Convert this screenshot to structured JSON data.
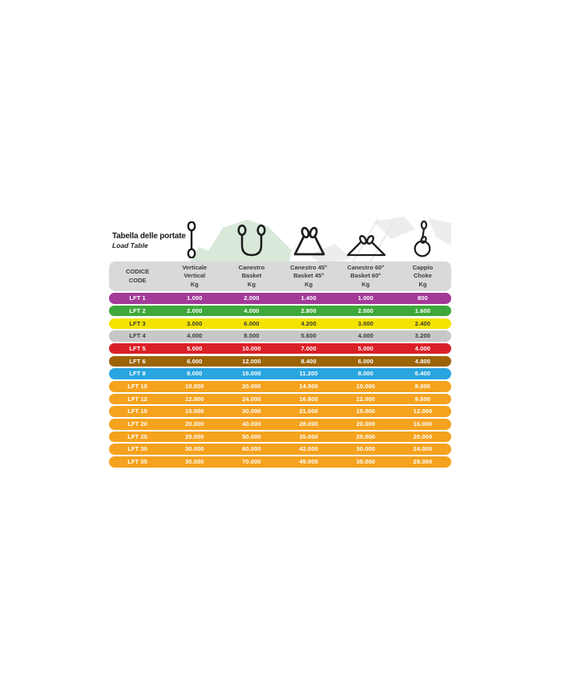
{
  "title": {
    "line1": "Tabella delle portate",
    "line2": "Load Table"
  },
  "table": {
    "code_header": [
      "CODICE",
      "CODE"
    ],
    "columns": [
      {
        "icon": "vertical-sling-icon",
        "label": [
          "Verticale",
          "Vertical",
          "Kg"
        ]
      },
      {
        "icon": "basket-sling-icon",
        "label": [
          "Canestro",
          "Basket",
          "Kg"
        ]
      },
      {
        "icon": "basket-45-sling-icon",
        "label": [
          "Canestro 45°",
          "Basket 45°",
          "Kg"
        ]
      },
      {
        "icon": "basket-60-sling-icon",
        "label": [
          "Canestro 60°",
          "Basket 60°",
          "Kg"
        ]
      },
      {
        "icon": "choke-sling-icon",
        "label": [
          "Cappio",
          "Choke",
          "Kg"
        ]
      }
    ],
    "rows": [
      {
        "code": "LFT 1",
        "values": [
          "1.000",
          "2.000",
          "1.400",
          "1.000",
          "800"
        ],
        "bg": "#a33a99",
        "fg": "#ffffff"
      },
      {
        "code": "LFT 2",
        "values": [
          "2.000",
          "4.000",
          "2.800",
          "2.000",
          "1.600"
        ],
        "bg": "#3fa83a",
        "fg": "#ffffff"
      },
      {
        "code": "LFT 3",
        "values": [
          "3.000",
          "6.000",
          "4.200",
          "3.000",
          "2.400"
        ],
        "bg": "#f4e300",
        "fg": "#3b3b3b"
      },
      {
        "code": "LFT 4",
        "values": [
          "4.000",
          "8.000",
          "5.600",
          "4.000",
          "3.200"
        ],
        "bg": "#c7c7c7",
        "fg": "#3b3b3b"
      },
      {
        "code": "LFT 5",
        "values": [
          "5.000",
          "10.000",
          "7.000",
          "5.000",
          "4.000"
        ],
        "bg": "#da2027",
        "fg": "#ffffff"
      },
      {
        "code": "LFT 6",
        "values": [
          "6.000",
          "12.000",
          "8.400",
          "6.000",
          "4.800"
        ],
        "bg": "#9c6407",
        "fg": "#ffffff"
      },
      {
        "code": "LFT 8",
        "values": [
          "8.000",
          "16.000",
          "11.200",
          "8.000",
          "6.400"
        ],
        "bg": "#29a5e0",
        "fg": "#ffffff"
      },
      {
        "code": "LFT 10",
        "values": [
          "10.000",
          "20.000",
          "14.000",
          "10.000",
          "8.000"
        ],
        "bg": "#f5a21e",
        "fg": "#ffffff"
      },
      {
        "code": "LFT 12",
        "values": [
          "12.000",
          "24.000",
          "16.800",
          "12.000",
          "9.600"
        ],
        "bg": "#f5a21e",
        "fg": "#ffffff"
      },
      {
        "code": "LFT 15",
        "values": [
          "15.000",
          "30.000",
          "21.000",
          "15.000",
          "12.000"
        ],
        "bg": "#f5a21e",
        "fg": "#ffffff"
      },
      {
        "code": "LFT 20",
        "values": [
          "20.000",
          "40.000",
          "28.000",
          "20.000",
          "16.000"
        ],
        "bg": "#f5a21e",
        "fg": "#ffffff"
      },
      {
        "code": "LFT 25",
        "values": [
          "25.000",
          "50.000",
          "35.000",
          "25.000",
          "20.000"
        ],
        "bg": "#f5a21e",
        "fg": "#ffffff"
      },
      {
        "code": "LFT 30",
        "values": [
          "30.000",
          "60.000",
          "42.000",
          "30.000",
          "24.000"
        ],
        "bg": "#f5a21e",
        "fg": "#ffffff"
      },
      {
        "code": "LFT 35",
        "values": [
          "35.000",
          "70.000",
          "49.000",
          "35.000",
          "28.000"
        ],
        "bg": "#f5a21e",
        "fg": "#ffffff"
      }
    ]
  },
  "colors": {
    "header_band": "#d9d9d9",
    "purple": "#a33a99",
    "green": "#3fa83a",
    "yellow": "#f4e300",
    "silver": "#c7c7c7",
    "red": "#da2027",
    "brown": "#9c6407",
    "blue": "#29a5e0",
    "orange": "#f5a21e",
    "watermark_green": "#d8e9da",
    "watermark_gray": "#ededed"
  }
}
